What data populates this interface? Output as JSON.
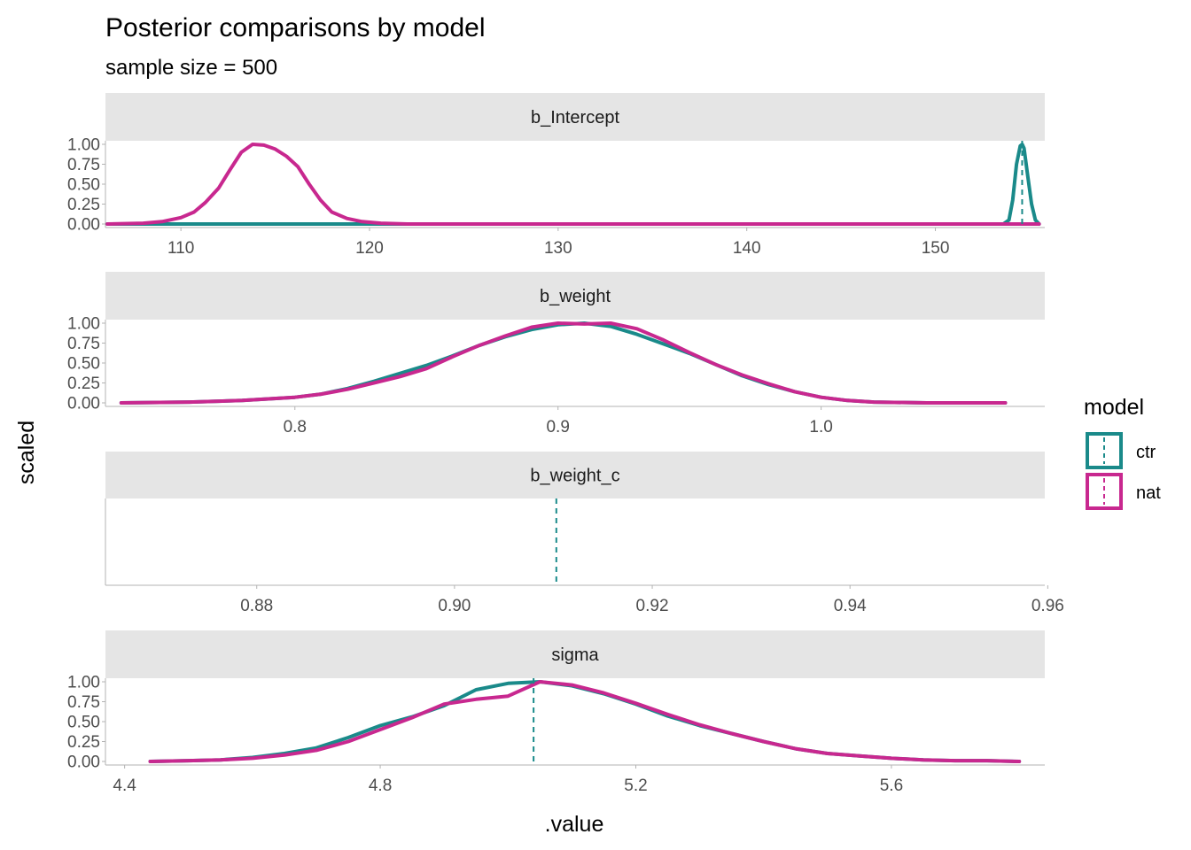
{
  "chart_data": {
    "type": "line",
    "title": "Posterior comparisons by model",
    "subtitle": "sample size = 500",
    "xlabel": ".value",
    "ylabel": "scaled",
    "legend": {
      "title": "model",
      "position": "right",
      "items": [
        {
          "name": "ctr",
          "color": "#1a8a8a"
        },
        {
          "name": "nat",
          "color": "#c8288f"
        }
      ]
    },
    "grid": false,
    "panels": [
      {
        "strip": "b_Intercept",
        "xlim": [
          106,
          155.8
        ],
        "ylim": [
          0,
          1
        ],
        "x_ticks": [
          110,
          120,
          130,
          140,
          150
        ],
        "x_tick_labels": [
          "110",
          "120",
          "130",
          "140",
          "150"
        ],
        "y_ticks": [
          0,
          0.25,
          0.5,
          0.75,
          1
        ],
        "y_tick_labels": [
          "0.00",
          "0.25",
          "0.50",
          "0.75",
          "1.00"
        ],
        "vlines": [
          {
            "series": "ctr",
            "x": 154.6
          }
        ],
        "series": [
          {
            "name": "ctr",
            "x": [
              106.1,
              150.0,
              153.6,
              153.9,
              154.1,
              154.3,
              154.5,
              154.6,
              154.7,
              154.9,
              155.1,
              155.3,
              155.5
            ],
            "y": [
              0.0,
              0.0,
              0.0,
              0.05,
              0.3,
              0.75,
              0.98,
              1.0,
              0.95,
              0.6,
              0.25,
              0.05,
              0.0
            ]
          },
          {
            "name": "nat",
            "x": [
              106.1,
              108.0,
              109.0,
              110.0,
              110.7,
              111.3,
              112.0,
              112.6,
              113.2,
              113.8,
              114.4,
              115.0,
              115.6,
              116.2,
              116.8,
              117.4,
              118.0,
              118.8,
              119.6,
              120.6,
              122.0,
              155.5
            ],
            "y": [
              0.0,
              0.01,
              0.03,
              0.08,
              0.15,
              0.27,
              0.45,
              0.68,
              0.9,
              1.0,
              0.99,
              0.94,
              0.85,
              0.72,
              0.5,
              0.3,
              0.15,
              0.07,
              0.03,
              0.01,
              0.0,
              0.0
            ]
          }
        ]
      },
      {
        "strip": "b_weight",
        "xlim": [
          0.728,
          1.085
        ],
        "ylim": [
          0,
          1
        ],
        "x_ticks": [
          0.8,
          0.9,
          1.0
        ],
        "x_tick_labels": [
          "0.8",
          "0.9",
          "1.0"
        ],
        "y_ticks": [
          0,
          0.25,
          0.5,
          0.75,
          1
        ],
        "y_tick_labels": [
          "0.00",
          "0.25",
          "0.50",
          "0.75",
          "1.00"
        ],
        "vlines": [],
        "series": [
          {
            "name": "ctr",
            "x": [
              0.734,
              0.76,
              0.78,
              0.8,
              0.81,
              0.82,
              0.83,
              0.84,
              0.85,
              0.86,
              0.87,
              0.88,
              0.89,
              0.9,
              0.91,
              0.92,
              0.93,
              0.94,
              0.95,
              0.96,
              0.97,
              0.98,
              0.99,
              1.0,
              1.01,
              1.02,
              1.04,
              1.06,
              1.07
            ],
            "y": [
              0.0,
              0.01,
              0.03,
              0.07,
              0.11,
              0.18,
              0.27,
              0.37,
              0.47,
              0.59,
              0.72,
              0.83,
              0.92,
              0.98,
              1.0,
              0.96,
              0.86,
              0.74,
              0.62,
              0.48,
              0.34,
              0.23,
              0.14,
              0.07,
              0.03,
              0.01,
              0.0,
              0.0,
              0.0
            ]
          },
          {
            "name": "nat",
            "x": [
              0.734,
              0.76,
              0.78,
              0.8,
              0.81,
              0.82,
              0.83,
              0.84,
              0.85,
              0.86,
              0.87,
              0.88,
              0.89,
              0.9,
              0.91,
              0.92,
              0.93,
              0.94,
              0.95,
              0.96,
              0.97,
              0.98,
              0.99,
              1.0,
              1.01,
              1.02,
              1.04,
              1.06,
              1.07
            ],
            "y": [
              0.0,
              0.01,
              0.03,
              0.07,
              0.11,
              0.17,
              0.25,
              0.33,
              0.43,
              0.58,
              0.72,
              0.84,
              0.95,
              1.0,
              0.99,
              1.0,
              0.93,
              0.79,
              0.63,
              0.48,
              0.35,
              0.24,
              0.14,
              0.07,
              0.03,
              0.01,
              0.0,
              0.0,
              0.0
            ]
          }
        ]
      },
      {
        "strip": "b_weight_c",
        "xlim": [
          0.8647,
          0.9597
        ],
        "ylim": [
          0,
          1
        ],
        "x_ticks": [
          0.88,
          0.9,
          0.92,
          0.94,
          0.96
        ],
        "x_tick_labels": [
          "0.88",
          "0.90",
          "0.92",
          "0.94",
          "0.96"
        ],
        "y_ticks": [],
        "y_tick_labels": [],
        "vlines": [
          {
            "series": "ctr",
            "x": 0.9103
          }
        ],
        "series": []
      },
      {
        "strip": "sigma",
        "xlim": [
          4.37,
          5.84
        ],
        "ylim": [
          0,
          1
        ],
        "x_ticks": [
          4.4,
          4.8,
          5.2,
          5.6
        ],
        "x_tick_labels": [
          "4.4",
          "4.8",
          "5.2",
          "5.6"
        ],
        "y_ticks": [
          0,
          0.25,
          0.5,
          0.75,
          1
        ],
        "y_tick_labels": [
          "0.00",
          "0.25",
          "0.50",
          "0.75",
          "1.00"
        ],
        "vlines": [
          {
            "series": "ctr",
            "x": 5.04
          }
        ],
        "series": [
          {
            "name": "ctr",
            "x": [
              4.44,
              4.5,
              4.55,
              4.6,
              4.65,
              4.7,
              4.75,
              4.8,
              4.85,
              4.9,
              4.95,
              5.0,
              5.05,
              5.1,
              5.15,
              5.2,
              5.25,
              5.3,
              5.35,
              5.4,
              5.45,
              5.5,
              5.55,
              5.6,
              5.65,
              5.7,
              5.75,
              5.8
            ],
            "y": [
              0.0,
              0.01,
              0.02,
              0.05,
              0.1,
              0.17,
              0.3,
              0.45,
              0.56,
              0.7,
              0.9,
              0.98,
              1.0,
              0.95,
              0.85,
              0.72,
              0.57,
              0.45,
              0.35,
              0.25,
              0.16,
              0.1,
              0.07,
              0.04,
              0.02,
              0.01,
              0.01,
              0.0
            ]
          },
          {
            "name": "nat",
            "x": [
              4.44,
              4.5,
              4.55,
              4.6,
              4.65,
              4.7,
              4.75,
              4.8,
              4.85,
              4.9,
              4.95,
              5.0,
              5.05,
              5.1,
              5.15,
              5.2,
              5.25,
              5.3,
              5.35,
              5.4,
              5.45,
              5.5,
              5.55,
              5.6,
              5.65,
              5.7,
              5.75,
              5.8
            ],
            "y": [
              0.0,
              0.01,
              0.02,
              0.04,
              0.08,
              0.14,
              0.25,
              0.4,
              0.55,
              0.72,
              0.78,
              0.82,
              1.0,
              0.96,
              0.86,
              0.73,
              0.59,
              0.46,
              0.35,
              0.25,
              0.16,
              0.1,
              0.07,
              0.04,
              0.02,
              0.01,
              0.01,
              0.0
            ]
          }
        ]
      }
    ]
  }
}
